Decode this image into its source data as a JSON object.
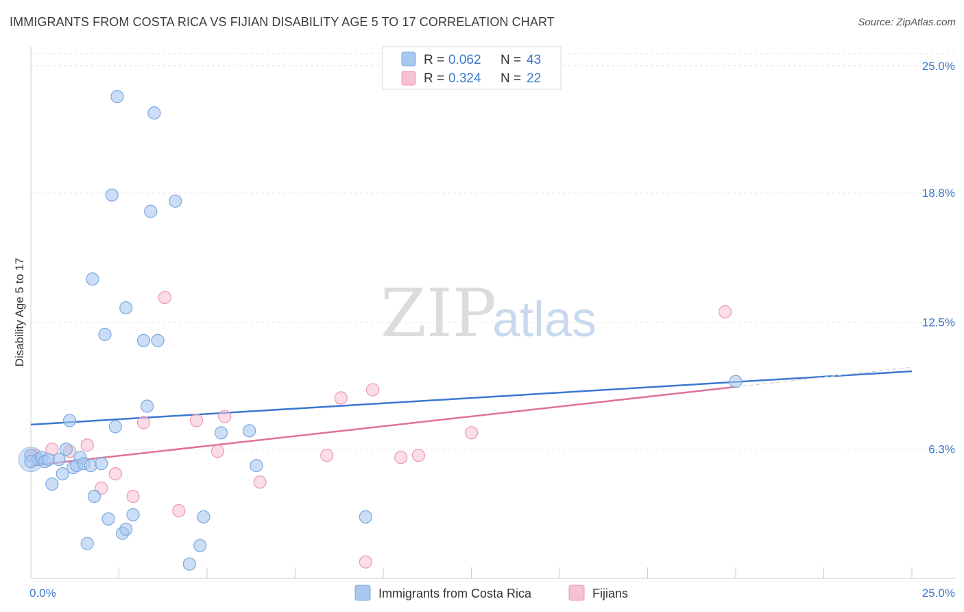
{
  "title": "IMMIGRANTS FROM COSTA RICA VS FIJIAN DISABILITY AGE 5 TO 17 CORRELATION CHART",
  "source": "Source: ZipAtlas.com",
  "watermark": {
    "zip": "ZIP",
    "atlas": "atlas"
  },
  "colors": {
    "blue": "#a9c8ef",
    "blue_stroke": "#7aa7e0",
    "blue_line": "#3a78d0",
    "pink": "#f6c1d1",
    "pink_stroke": "#ec97b2",
    "pink_line": "#e0709a",
    "tick": "#3a78c9"
  },
  "legend": {
    "rows": [
      {
        "r_label": "R =",
        "r_value": "0.062",
        "n_label": "N =",
        "n_value": "43"
      },
      {
        "r_label": "R =",
        "r_value": "0.324",
        "n_label": "N =",
        "n_value": "22"
      }
    ]
  },
  "chart_data": {
    "type": "scatter",
    "ylabel": "Disability Age 5 to 17",
    "xlim": [
      0,
      25
    ],
    "ylim": [
      0,
      25.6
    ],
    "x_tick_labels": [
      "0.0%",
      "25.0%"
    ],
    "y_ticks": [
      {
        "value": 25.0,
        "label": "25.0%"
      },
      {
        "value": 18.8,
        "label": "18.8%"
      },
      {
        "value": 12.5,
        "label": "12.5%"
      },
      {
        "value": 6.3,
        "label": "6.3%"
      }
    ],
    "series": [
      {
        "name": "Immigrants from Costa Rica",
        "color": "#a9c8ef",
        "trend": {
          "x": [
            0,
            25
          ],
          "y": [
            7.5,
            10.1
          ]
        },
        "points": [
          {
            "x": 0.0,
            "y": 6.0
          },
          {
            "x": 0.2,
            "y": 5.8
          },
          {
            "x": 0.3,
            "y": 5.9
          },
          {
            "x": 0.4,
            "y": 5.7
          },
          {
            "x": 0.5,
            "y": 5.8
          },
          {
            "x": 0.6,
            "y": 4.6
          },
          {
            "x": 0.8,
            "y": 5.8
          },
          {
            "x": 0.9,
            "y": 5.1
          },
          {
            "x": 1.0,
            "y": 6.3
          },
          {
            "x": 1.1,
            "y": 7.7
          },
          {
            "x": 1.2,
            "y": 5.4
          },
          {
            "x": 1.3,
            "y": 5.5
          },
          {
            "x": 1.4,
            "y": 5.9
          },
          {
            "x": 1.5,
            "y": 5.6
          },
          {
            "x": 1.6,
            "y": 1.7
          },
          {
            "x": 1.7,
            "y": 5.5
          },
          {
            "x": 1.8,
            "y": 4.0
          },
          {
            "x": 1.75,
            "y": 14.6
          },
          {
            "x": 2.0,
            "y": 5.6
          },
          {
            "x": 2.1,
            "y": 11.9
          },
          {
            "x": 2.2,
            "y": 2.9
          },
          {
            "x": 2.3,
            "y": 18.7
          },
          {
            "x": 2.4,
            "y": 7.4
          },
          {
            "x": 2.45,
            "y": 23.5
          },
          {
            "x": 2.6,
            "y": 2.2
          },
          {
            "x": 2.7,
            "y": 2.4
          },
          {
            "x": 2.7,
            "y": 13.2
          },
          {
            "x": 2.9,
            "y": 3.1
          },
          {
            "x": 3.2,
            "y": 11.6
          },
          {
            "x": 3.3,
            "y": 8.4
          },
          {
            "x": 3.4,
            "y": 17.9
          },
          {
            "x": 3.5,
            "y": 22.7
          },
          {
            "x": 3.6,
            "y": 11.6
          },
          {
            "x": 4.1,
            "y": 18.4
          },
          {
            "x": 4.5,
            "y": 0.7
          },
          {
            "x": 4.8,
            "y": 1.6
          },
          {
            "x": 4.9,
            "y": 3.0
          },
          {
            "x": 5.4,
            "y": 7.1
          },
          {
            "x": 6.2,
            "y": 7.2
          },
          {
            "x": 6.4,
            "y": 5.5
          },
          {
            "x": 9.5,
            "y": 3.0
          },
          {
            "x": 20.0,
            "y": 9.6
          },
          {
            "x": 0.0,
            "y": 5.7
          }
        ]
      },
      {
        "name": "Fijians",
        "color": "#f6c1d1",
        "trend": {
          "x": [
            0,
            25
          ],
          "y": [
            5.5,
            10.3
          ]
        },
        "points": [
          {
            "x": 0.1,
            "y": 6.0
          },
          {
            "x": 0.6,
            "y": 6.3
          },
          {
            "x": 1.1,
            "y": 6.2
          },
          {
            "x": 1.6,
            "y": 6.5
          },
          {
            "x": 2.0,
            "y": 4.4
          },
          {
            "x": 2.4,
            "y": 5.1
          },
          {
            "x": 2.9,
            "y": 4.0
          },
          {
            "x": 3.2,
            "y": 7.6
          },
          {
            "x": 3.8,
            "y": 13.7
          },
          {
            "x": 4.2,
            "y": 3.3
          },
          {
            "x": 4.7,
            "y": 7.7
          },
          {
            "x": 5.3,
            "y": 6.2
          },
          {
            "x": 5.5,
            "y": 7.9
          },
          {
            "x": 6.5,
            "y": 4.7
          },
          {
            "x": 8.4,
            "y": 6.0
          },
          {
            "x": 8.8,
            "y": 8.8
          },
          {
            "x": 9.5,
            "y": 0.8
          },
          {
            "x": 9.7,
            "y": 9.2
          },
          {
            "x": 10.5,
            "y": 5.9
          },
          {
            "x": 11.0,
            "y": 6.0
          },
          {
            "x": 12.5,
            "y": 7.1
          },
          {
            "x": 19.7,
            "y": 13.0
          }
        ]
      }
    ]
  }
}
